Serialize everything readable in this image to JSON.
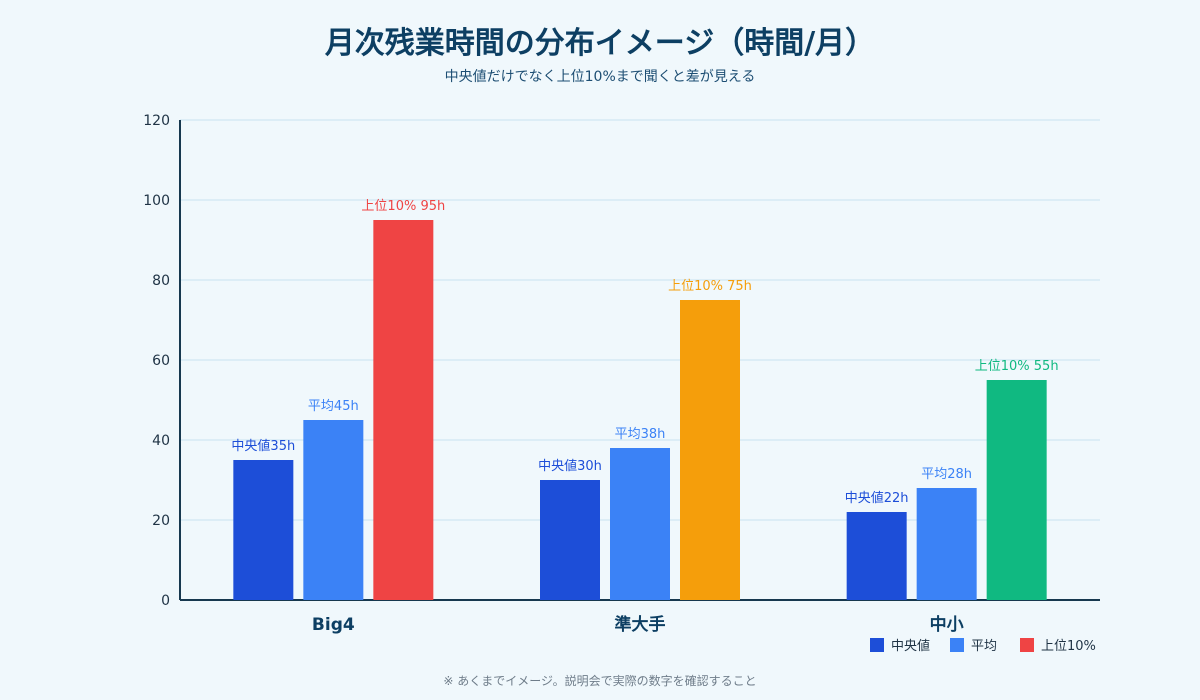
{
  "chart_data": {
    "type": "bar",
    "title": "月次残業時間の分布イメージ（時間/月）",
    "subtitle": "中央値だけでなく上位10%まで聞くと差が見える",
    "categories": [
      "Big4",
      "準大手",
      "中小"
    ],
    "series": [
      {
        "name": "中央値",
        "values": [
          35,
          30,
          22
        ],
        "color": "#1d4ed8",
        "labels": [
          "中央値35h",
          "中央値30h",
          "中央値22h"
        ]
      },
      {
        "name": "平均",
        "values": [
          45,
          38,
          28
        ],
        "color": "#3b82f6",
        "labels": [
          "平均45h",
          "平均38h",
          "平均28h"
        ]
      },
      {
        "name": "上位10%",
        "values": [
          95,
          75,
          55
        ],
        "colors": [
          "#ef4444",
          "#f59e0b",
          "#10b981"
        ],
        "legend_color": "#ef4444",
        "labels": [
          "上位10% 95h",
          "上位10% 75h",
          "上位10% 55h"
        ]
      }
    ],
    "ylim": [
      0,
      120
    ],
    "yticks": [
      0,
      20,
      40,
      60,
      80,
      100,
      120
    ],
    "grid": true,
    "legend_position": "bottom-right"
  },
  "footnote": "※ あくまでイメージ。説明会で実際の数字を確認すること"
}
